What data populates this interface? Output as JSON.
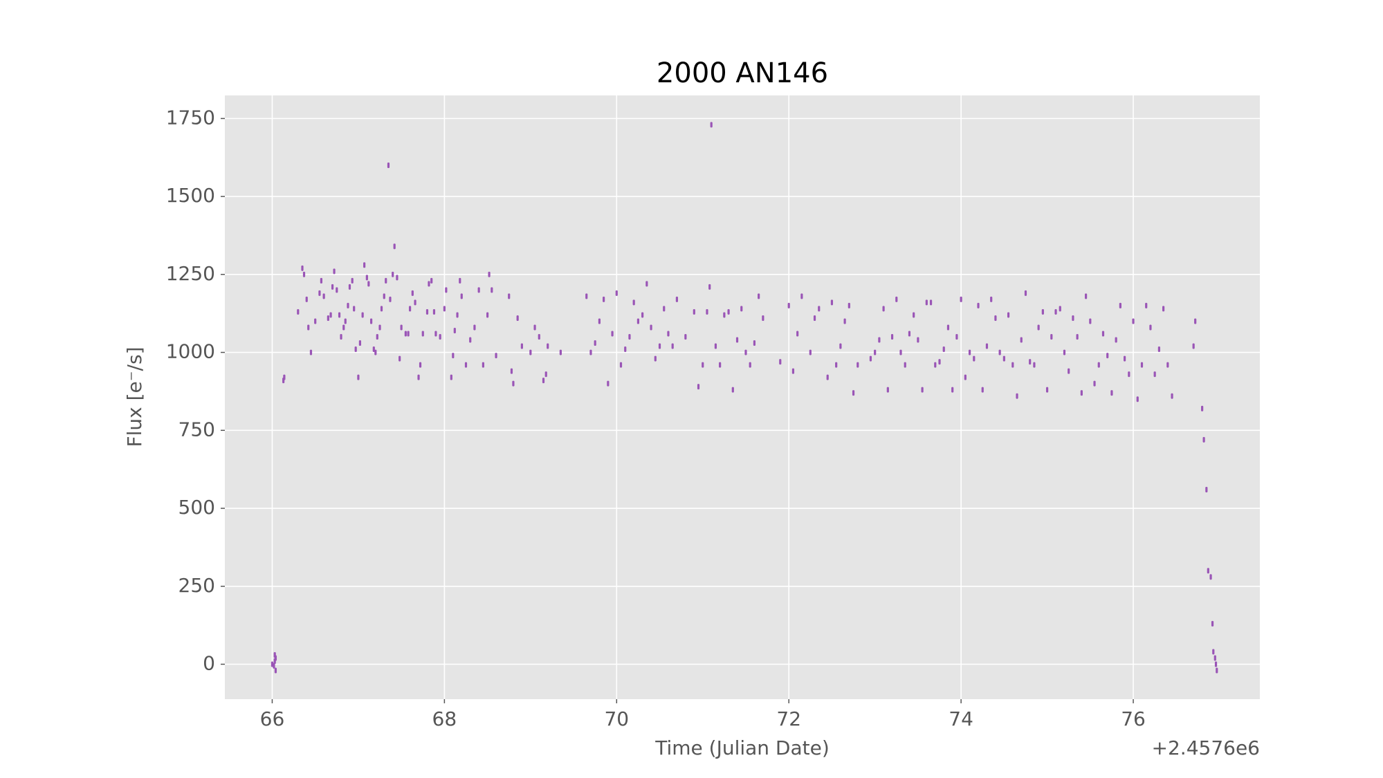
{
  "chart_data": {
    "type": "scatter",
    "title": "2000 AN146",
    "x_label": "Time (Julian Date)",
    "y_label": "Flux [e⁻/s]",
    "x_offset_label": "+2.4576e6",
    "xlim": [
      65.45,
      77.47
    ],
    "ylim": [
      -112,
      1824
    ],
    "xticks": [
      66,
      68,
      70,
      72,
      74,
      76
    ],
    "yticks": [
      0,
      250,
      500,
      750,
      1000,
      1250,
      1500,
      1750
    ],
    "grid": true,
    "color": "#9a55b6",
    "x": [
      66.0,
      66.02,
      66.03,
      66.03,
      66.04,
      66.04,
      66.13,
      66.14,
      66.3,
      66.35,
      66.37,
      66.4,
      66.42,
      66.45,
      66.5,
      66.55,
      66.57,
      66.6,
      66.65,
      66.68,
      66.7,
      66.72,
      66.75,
      66.78,
      66.8,
      66.83,
      66.85,
      66.88,
      66.9,
      66.93,
      66.95,
      66.97,
      67.0,
      67.02,
      67.05,
      67.07,
      67.1,
      67.12,
      67.15,
      67.18,
      67.2,
      67.22,
      67.25,
      67.27,
      67.3,
      67.32,
      67.35,
      67.37,
      67.4,
      67.42,
      67.45,
      67.48,
      67.5,
      67.55,
      67.58,
      67.6,
      67.63,
      67.66,
      67.7,
      67.72,
      67.75,
      67.8,
      67.82,
      67.85,
      67.88,
      67.9,
      67.95,
      68.0,
      68.02,
      68.08,
      68.1,
      68.12,
      68.15,
      68.18,
      68.2,
      68.25,
      68.3,
      68.35,
      68.4,
      68.45,
      68.5,
      68.52,
      68.55,
      68.6,
      68.75,
      68.78,
      68.8,
      68.85,
      68.9,
      69.0,
      69.05,
      69.1,
      69.15,
      69.18,
      69.2,
      69.35,
      69.65,
      69.7,
      69.75,
      69.8,
      69.85,
      69.9,
      69.95,
      70.0,
      70.05,
      70.1,
      70.15,
      70.2,
      70.25,
      70.3,
      70.35,
      70.4,
      70.45,
      70.5,
      70.55,
      70.6,
      70.65,
      70.7,
      70.8,
      70.9,
      70.95,
      71.0,
      71.05,
      71.08,
      71.1,
      71.15,
      71.2,
      71.25,
      71.3,
      71.35,
      71.4,
      71.45,
      71.5,
      71.55,
      71.6,
      71.65,
      71.7,
      71.9,
      72.0,
      72.05,
      72.1,
      72.15,
      72.25,
      72.3,
      72.35,
      72.45,
      72.5,
      72.55,
      72.6,
      72.65,
      72.7,
      72.75,
      72.8,
      72.95,
      73.0,
      73.05,
      73.1,
      73.15,
      73.2,
      73.25,
      73.3,
      73.35,
      73.4,
      73.45,
      73.5,
      73.55,
      73.6,
      73.65,
      73.7,
      73.75,
      73.8,
      73.85,
      73.9,
      73.95,
      74.0,
      74.05,
      74.1,
      74.15,
      74.2,
      74.25,
      74.3,
      74.35,
      74.4,
      74.45,
      74.5,
      74.55,
      74.6,
      74.65,
      74.7,
      74.75,
      74.8,
      74.85,
      74.9,
      74.95,
      75.0,
      75.05,
      75.1,
      75.15,
      75.2,
      75.25,
      75.3,
      75.35,
      75.4,
      75.45,
      75.5,
      75.55,
      75.6,
      75.65,
      75.7,
      75.75,
      75.8,
      75.85,
      75.9,
      75.95,
      76.0,
      76.05,
      76.1,
      76.15,
      76.2,
      76.25,
      76.3,
      76.35,
      76.4,
      76.45,
      76.7,
      76.72,
      76.8,
      76.82,
      76.85,
      76.87,
      76.9,
      76.92,
      76.93,
      76.95,
      76.96,
      76.97
    ],
    "values": [
      0,
      -5,
      30,
      10,
      -20,
      20,
      910,
      920,
      1130,
      1270,
      1250,
      1170,
      1080,
      1000,
      1100,
      1190,
      1230,
      1180,
      1110,
      1120,
      1210,
      1260,
      1200,
      1120,
      1050,
      1080,
      1100,
      1150,
      1210,
      1230,
      1140,
      1010,
      920,
      1030,
      1120,
      1280,
      1240,
      1220,
      1100,
      1010,
      1000,
      1050,
      1080,
      1140,
      1180,
      1230,
      1600,
      1170,
      1250,
      1340,
      1240,
      980,
      1080,
      1060,
      1060,
      1140,
      1190,
      1160,
      920,
      960,
      1060,
      1130,
      1220,
      1230,
      1130,
      1060,
      1050,
      1140,
      1200,
      920,
      990,
      1070,
      1120,
      1230,
      1180,
      960,
      1040,
      1080,
      1200,
      960,
      1120,
      1250,
      1200,
      990,
      1180,
      940,
      900,
      1110,
      1020,
      1000,
      1080,
      1050,
      910,
      930,
      1020,
      1000,
      1180,
      1000,
      1030,
      1100,
      1170,
      900,
      1060,
      1190,
      960,
      1010,
      1050,
      1160,
      1100,
      1120,
      1220,
      1080,
      980,
      1020,
      1140,
      1060,
      1020,
      1170,
      1050,
      1130,
      890,
      960,
      1130,
      1210,
      1730,
      1020,
      960,
      1120,
      1130,
      880,
      1040,
      1140,
      1000,
      960,
      1030,
      1180,
      1110,
      970,
      1150,
      940,
      1060,
      1180,
      1000,
      1110,
      1140,
      920,
      1160,
      960,
      1020,
      1100,
      1150,
      870,
      960,
      980,
      1000,
      1040,
      1140,
      880,
      1050,
      1170,
      1000,
      960,
      1060,
      1120,
      1040,
      880,
      1160,
      1160,
      960,
      970,
      1010,
      1080,
      880,
      1050,
      1170,
      920,
      1000,
      980,
      1150,
      880,
      1020,
      1170,
      1110,
      1000,
      980,
      1120,
      960,
      860,
      1040,
      1190,
      970,
      960,
      1080,
      1130,
      880,
      1050,
      1130,
      1140,
      1000,
      940,
      1110,
      1050,
      870,
      1180,
      1100,
      900,
      960,
      1060,
      990,
      870,
      1040,
      1150,
      980,
      930,
      1100,
      850,
      960,
      1150,
      1080,
      930,
      1010,
      1140,
      960,
      860,
      1020,
      1100,
      820,
      720,
      560,
      300,
      280,
      130,
      40,
      20,
      0,
      -20
    ]
  }
}
